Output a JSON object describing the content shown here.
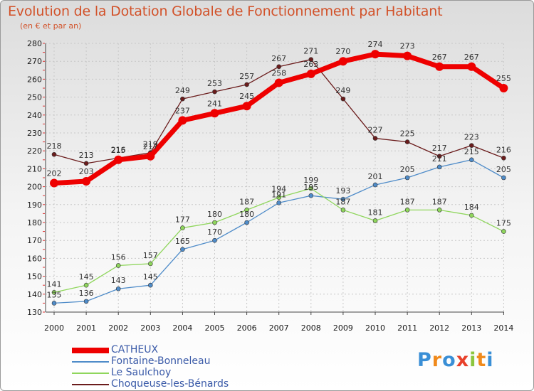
{
  "title": "Evolution de la Dotation Globale de Fonctionnement par Habitant",
  "subtitle": "(en € et par an)",
  "logo_text": "Proxiti",
  "colors": {
    "title": "#d2522a",
    "legend_text": "#3a5aa8",
    "grid": "#c8c8c8"
  },
  "chart_data": {
    "type": "line",
    "title": "Evolution de la Dotation Globale de Fonctionnement par Habitant",
    "subtitle": "(en € et par an)",
    "x": [
      "2000",
      "2001",
      "2002",
      "2003",
      "2004",
      "2005",
      "2006",
      "2007",
      "2008",
      "2009",
      "2010",
      "2011",
      "2012",
      "2013",
      "2014"
    ],
    "ylim": [
      130,
      280
    ],
    "yticks": [
      130,
      140,
      150,
      160,
      170,
      180,
      190,
      200,
      210,
      220,
      230,
      240,
      250,
      260,
      270,
      280
    ],
    "grid": true,
    "legend_position": "bottom-left",
    "series": [
      {
        "name": "CATHEUX",
        "color": "#ee0000",
        "emphasis": true,
        "values": [
          202,
          203,
          215,
          217,
          237,
          241,
          245,
          258,
          263,
          270,
          274,
          273,
          267,
          267,
          255
        ]
      },
      {
        "name": "Fontaine-Bonneleau",
        "color": "#4f8cc9",
        "emphasis": false,
        "values": [
          135,
          136,
          143,
          145,
          165,
          170,
          180,
          191,
          195,
          193,
          201,
          205,
          211,
          215,
          205
        ]
      },
      {
        "name": "Le Saulchoy",
        "color": "#8fd65c",
        "emphasis": false,
        "values": [
          141,
          145,
          156,
          157,
          177,
          180,
          187,
          194,
          199,
          187,
          181,
          187,
          187,
          184,
          175
        ]
      },
      {
        "name": "Choqueuse-les-Bénards",
        "color": "#6b1c1c",
        "emphasis": false,
        "values": [
          218,
          213,
          216,
          219,
          249,
          253,
          257,
          267,
          271,
          249,
          227,
          225,
          217,
          223,
          216
        ]
      }
    ]
  }
}
